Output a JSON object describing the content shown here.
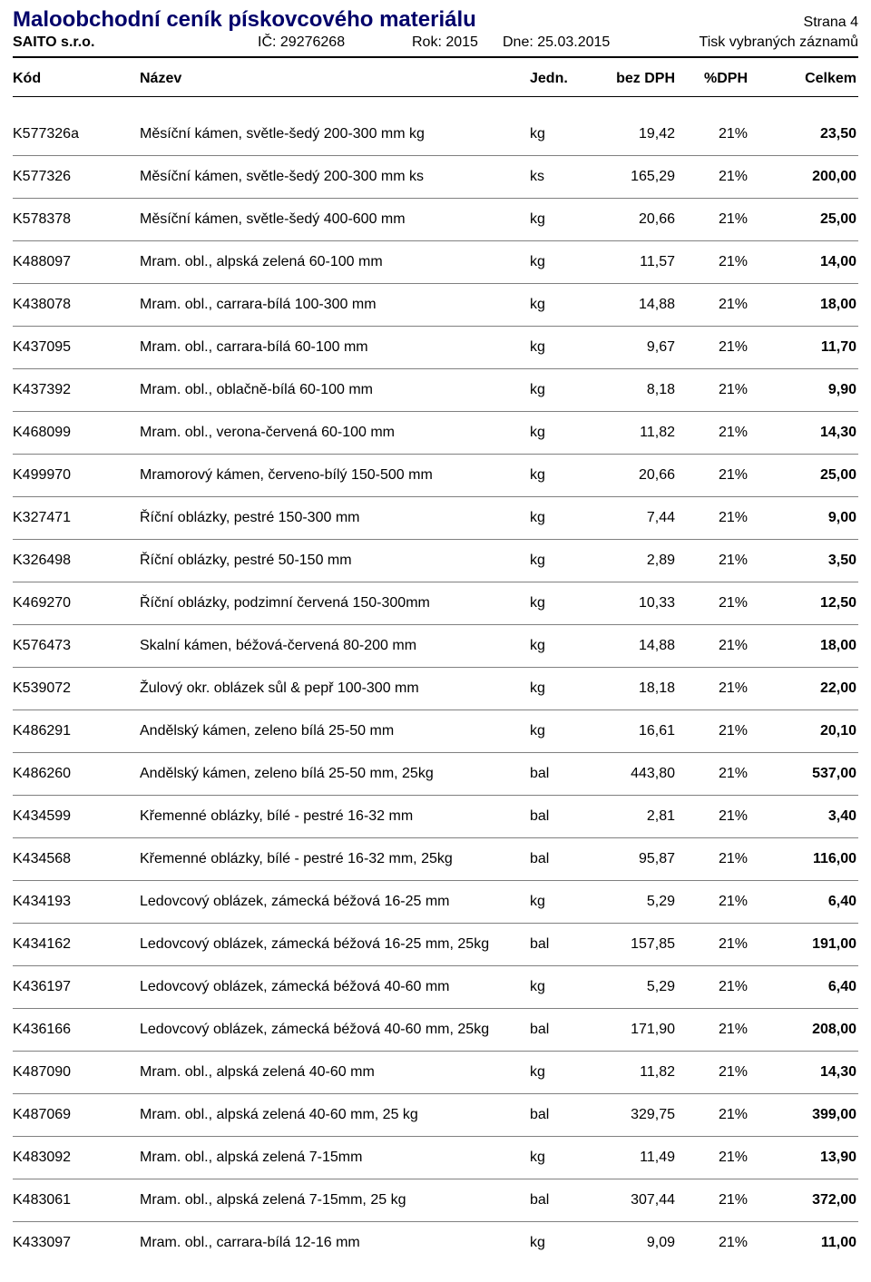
{
  "header": {
    "title": "Maloobchodní ceník pískovcového materiálu",
    "page_label": "Strana 4",
    "company": "SAITO s.r.o.",
    "ic_label": "IČ:",
    "ic_value": "29276268",
    "rok_label": "Rok:",
    "rok_value": "2015",
    "dne_label": "Dne:",
    "dne_value": "25.03.2015",
    "print_note": "Tisk vybraných záznamů"
  },
  "columns": {
    "kod": "Kód",
    "nazev": "Název",
    "jedn": "Jedn.",
    "bez": "bez DPH",
    "dph": "%DPH",
    "celkem": "Celkem"
  },
  "rows": [
    {
      "kod": "K577326a",
      "nazev": "Měsíční kámen, světle-šedý 200-300 mm kg",
      "jedn": "kg",
      "bez": "19,42",
      "dph": "21%",
      "cel": "23,50"
    },
    {
      "kod": "K577326",
      "nazev": "Měsíční kámen, světle-šedý 200-300 mm ks",
      "jedn": "ks",
      "bez": "165,29",
      "dph": "21%",
      "cel": "200,00"
    },
    {
      "kod": "K578378",
      "nazev": "Měsíční kámen, světle-šedý 400-600 mm",
      "jedn": "kg",
      "bez": "20,66",
      "dph": "21%",
      "cel": "25,00"
    },
    {
      "kod": "K488097",
      "nazev": "Mram. obl., alpská zelená 60-100 mm",
      "jedn": "kg",
      "bez": "11,57",
      "dph": "21%",
      "cel": "14,00"
    },
    {
      "kod": "K438078",
      "nazev": "Mram. obl., carrara-bílá 100-300 mm",
      "jedn": "kg",
      "bez": "14,88",
      "dph": "21%",
      "cel": "18,00"
    },
    {
      "kod": "K437095",
      "nazev": "Mram. obl., carrara-bílá 60-100 mm",
      "jedn": "kg",
      "bez": "9,67",
      "dph": "21%",
      "cel": "11,70"
    },
    {
      "kod": "K437392",
      "nazev": "Mram. obl., oblačně-bílá 60-100 mm",
      "jedn": "kg",
      "bez": "8,18",
      "dph": "21%",
      "cel": "9,90"
    },
    {
      "kod": "K468099",
      "nazev": "Mram. obl., verona-červená 60-100 mm",
      "jedn": "kg",
      "bez": "11,82",
      "dph": "21%",
      "cel": "14,30"
    },
    {
      "kod": "K499970",
      "nazev": "Mramorový kámen, červeno-bílý 150-500 mm",
      "jedn": "kg",
      "bez": "20,66",
      "dph": "21%",
      "cel": "25,00"
    },
    {
      "kod": "K327471",
      "nazev": "Říční oblázky, pestré 150-300 mm",
      "jedn": "kg",
      "bez": "7,44",
      "dph": "21%",
      "cel": "9,00"
    },
    {
      "kod": "K326498",
      "nazev": "Říční oblázky, pestré 50-150 mm",
      "jedn": "kg",
      "bez": "2,89",
      "dph": "21%",
      "cel": "3,50"
    },
    {
      "kod": "K469270",
      "nazev": "Říční oblázky, podzimní červená 150-300mm",
      "jedn": "kg",
      "bez": "10,33",
      "dph": "21%",
      "cel": "12,50"
    },
    {
      "kod": "K576473",
      "nazev": "Skalní kámen, béžová-červená 80-200 mm",
      "jedn": "kg",
      "bez": "14,88",
      "dph": "21%",
      "cel": "18,00"
    },
    {
      "kod": "K539072",
      "nazev": "Žulový okr. oblázek sůl & pepř 100-300 mm",
      "jedn": "kg",
      "bez": "18,18",
      "dph": "21%",
      "cel": "22,00"
    },
    {
      "kod": "K486291",
      "nazev": "Andělský kámen, zeleno bílá 25-50 mm",
      "jedn": "kg",
      "bez": "16,61",
      "dph": "21%",
      "cel": "20,10"
    },
    {
      "kod": "K486260",
      "nazev": "Andělský kámen, zeleno bílá 25-50 mm, 25kg",
      "jedn": "bal",
      "bez": "443,80",
      "dph": "21%",
      "cel": "537,00"
    },
    {
      "kod": "K434599",
      "nazev": "Křemenné oblázky, bílé - pestré 16-32 mm",
      "jedn": "bal",
      "bez": "2,81",
      "dph": "21%",
      "cel": "3,40"
    },
    {
      "kod": "K434568",
      "nazev": "Křemenné oblázky, bílé - pestré 16-32 mm, 25kg",
      "jedn": "bal",
      "bez": "95,87",
      "dph": "21%",
      "cel": "116,00"
    },
    {
      "kod": "K434193",
      "nazev": "Ledovcový oblázek, zámecká béžová 16-25 mm",
      "jedn": "kg",
      "bez": "5,29",
      "dph": "21%",
      "cel": "6,40"
    },
    {
      "kod": "K434162",
      "nazev": "Ledovcový oblázek, zámecká béžová 16-25 mm, 25kg",
      "jedn": "bal",
      "bez": "157,85",
      "dph": "21%",
      "cel": "191,00"
    },
    {
      "kod": "K436197",
      "nazev": "Ledovcový oblázek, zámecká béžová 40-60 mm",
      "jedn": "kg",
      "bez": "5,29",
      "dph": "21%",
      "cel": "6,40"
    },
    {
      "kod": "K436166",
      "nazev": "Ledovcový oblázek, zámecká béžová 40-60 mm, 25kg",
      "jedn": "bal",
      "bez": "171,90",
      "dph": "21%",
      "cel": "208,00"
    },
    {
      "kod": "K487090",
      "nazev": "Mram. obl., alpská zelená 40-60 mm",
      "jedn": "kg",
      "bez": "11,82",
      "dph": "21%",
      "cel": "14,30"
    },
    {
      "kod": "K487069",
      "nazev": "Mram. obl., alpská zelená 40-60 mm, 25 kg",
      "jedn": "bal",
      "bez": "329,75",
      "dph": "21%",
      "cel": "399,00"
    },
    {
      "kod": "K483092",
      "nazev": "Mram. obl., alpská zelená 7-15mm",
      "jedn": "kg",
      "bez": "11,49",
      "dph": "21%",
      "cel": "13,90"
    },
    {
      "kod": "K483061",
      "nazev": "Mram. obl., alpská zelená 7-15mm, 25 kg",
      "jedn": "bal",
      "bez": "307,44",
      "dph": "21%",
      "cel": "372,00"
    },
    {
      "kod": "K433097",
      "nazev": "Mram. obl., carrara-bílá 12-16 mm",
      "jedn": "kg",
      "bez": "9,09",
      "dph": "21%",
      "cel": "11,00"
    }
  ]
}
